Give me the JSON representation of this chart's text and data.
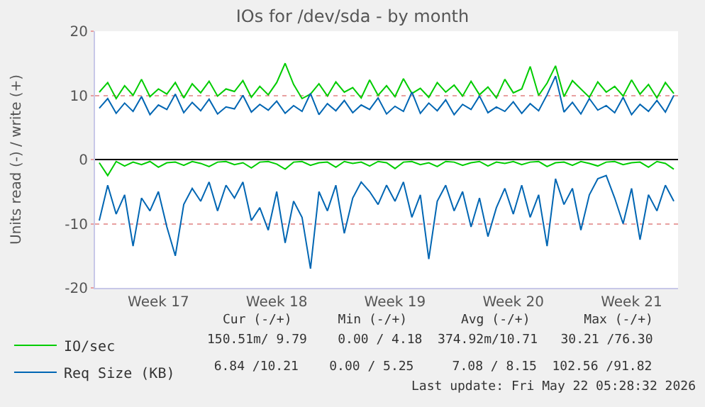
{
  "chart_data": {
    "type": "line",
    "title": "IOs for /dev/sda - by month",
    "ylabel": "Units read (-) / write (+)",
    "categories": [
      null,
      null,
      null,
      null,
      null,
      null,
      null,
      "Week 17",
      null,
      null,
      null,
      null,
      null,
      null,
      null,
      null,
      null,
      null,
      null,
      null,
      null,
      "Week 18",
      null,
      null,
      null,
      null,
      null,
      null,
      null,
      null,
      null,
      null,
      null,
      null,
      null,
      "Week 19",
      null,
      null,
      null,
      null,
      null,
      null,
      null,
      null,
      null,
      null,
      null,
      null,
      null,
      "Week 20",
      null,
      null,
      null,
      null,
      null,
      null,
      null,
      null,
      null,
      null,
      null,
      null,
      null,
      "Week 21",
      null,
      null,
      null,
      null,
      null
    ],
    "ylim": [
      -20,
      20
    ],
    "yticks": [
      -20,
      -10,
      0,
      10,
      20
    ],
    "grid": "y",
    "legend": "bottom left",
    "ref_lines": [
      {
        "axis": "y",
        "value": 0,
        "color": "#000000"
      }
    ],
    "series": [
      {
        "name": "IO/sec",
        "color": "#00cc00",
        "values": [
          10.5,
          12.0,
          9.5,
          11.5,
          10.0,
          12.5,
          9.8,
          11.0,
          10.2,
          12.0,
          9.6,
          11.8,
          10.4,
          12.2,
          9.9,
          11.0,
          10.6,
          12.3,
          9.7,
          11.4,
          10.1,
          12.0,
          15.0,
          11.7,
          9.5,
          10.2,
          11.8,
          9.9,
          12.1,
          10.5,
          11.2,
          9.6,
          12.4,
          10.0,
          11.5,
          9.8,
          12.6,
          10.3,
          11.1,
          9.7,
          12.0,
          10.5,
          11.6,
          9.9,
          12.2,
          10.1,
          11.3,
          9.6,
          12.5,
          10.4,
          11.0,
          14.5,
          10.0,
          11.9,
          14.6,
          9.8,
          12.3,
          11.0,
          9.7,
          12.1,
          10.5,
          11.4,
          9.9,
          12.4,
          10.2,
          11.7,
          9.6,
          12.0,
          10.3
        ]
      },
      {
        "color": "#00cc00",
        "values": [
          -0.5,
          -2.5,
          -0.3,
          -1.0,
          -0.4,
          -0.8,
          -0.3,
          -1.2,
          -0.5,
          -0.4,
          -0.9,
          -0.3,
          -0.6,
          -1.1,
          -0.4,
          -0.3,
          -0.8,
          -0.5,
          -1.3,
          -0.4,
          -0.3,
          -0.7,
          -1.5,
          -0.4,
          -0.3,
          -0.9,
          -0.5,
          -0.4,
          -1.2,
          -0.3,
          -0.6,
          -0.4,
          -1.0,
          -0.3,
          -0.5,
          -1.4,
          -0.4,
          -0.3,
          -0.8,
          -0.5,
          -1.1,
          -0.3,
          -0.4,
          -0.9,
          -0.5,
          -0.3,
          -1.0,
          -0.4,
          -0.6,
          -0.3,
          -0.8,
          -0.4,
          -0.3,
          -1.1,
          -0.5,
          -0.4,
          -0.9,
          -0.3,
          -0.6,
          -1.0,
          -0.4,
          -0.3,
          -0.8,
          -0.5,
          -0.4,
          -1.2,
          -0.3,
          -0.6,
          -1.5
        ]
      },
      {
        "name": "Req Size (KB)",
        "color": "#0066b3",
        "values": [
          8.0,
          9.5,
          7.2,
          8.8,
          7.5,
          9.8,
          7.0,
          8.5,
          7.8,
          10.2,
          7.3,
          8.9,
          7.6,
          9.4,
          7.1,
          8.2,
          7.9,
          10.0,
          7.4,
          8.6,
          7.7,
          9.1,
          7.2,
          8.4,
          7.5,
          10.3,
          7.0,
          8.7,
          7.6,
          9.2,
          7.3,
          8.5,
          7.8,
          9.6,
          7.1,
          8.3,
          7.5,
          10.5,
          7.2,
          8.8,
          7.6,
          9.3,
          7.0,
          8.6,
          7.8,
          9.9,
          7.3,
          8.2,
          7.5,
          9.0,
          7.2,
          8.7,
          7.6,
          10.1,
          13.0,
          7.4,
          8.9,
          7.1,
          9.5,
          7.7,
          8.4,
          7.3,
          9.7,
          7.0,
          8.6,
          7.5,
          9.2,
          7.4,
          10.0
        ]
      },
      {
        "color": "#0066b3",
        "values": [
          -9.5,
          -4.0,
          -8.5,
          -5.5,
          -13.5,
          -6.0,
          -8.0,
          -5.0,
          -10.5,
          -15.0,
          -7.0,
          -4.5,
          -6.5,
          -3.5,
          -8.0,
          -4.0,
          -6.0,
          -3.5,
          -9.5,
          -7.5,
          -11.0,
          -5.0,
          -13.0,
          -6.5,
          -9.0,
          -17.0,
          -5.0,
          -8.0,
          -4.0,
          -11.5,
          -6.0,
          -3.5,
          -5.0,
          -7.0,
          -4.0,
          -6.5,
          -3.5,
          -9.0,
          -5.5,
          -15.5,
          -6.5,
          -4.0,
          -8.0,
          -5.0,
          -10.5,
          -6.0,
          -12.0,
          -7.5,
          -4.5,
          -8.5,
          -4.0,
          -9.0,
          -5.5,
          -13.5,
          -3.0,
          -7.0,
          -4.5,
          -11.0,
          -5.5,
          -3.0,
          -2.5,
          -6.0,
          -10.0,
          -4.5,
          -12.5,
          -5.5,
          -8.0,
          -4.0,
          -6.5
        ]
      }
    ],
    "annotations": [
      "Cur (-/+)      Min (-/+)       Avg (-/+)       Max (-/+)",
      "150.51m/ 9.79    0.00 / 4.18  374.92m/10.71   30.21 /76.30",
      "  6.84 /10.21    0.00 / 5.25     7.08 / 8.15  102.56 /91.82",
      "Last update: Fri May 22 05:28:32 2026"
    ]
  }
}
